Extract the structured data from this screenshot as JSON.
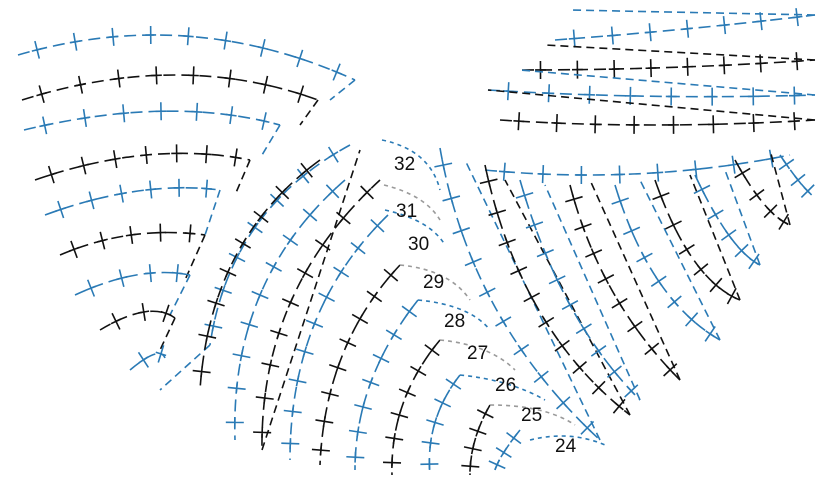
{
  "colors": {
    "black": "#111111",
    "blue": "#2a7ab5",
    "gray": "#9a9a9a",
    "background": "#ffffff"
  },
  "diagram": {
    "row_labels": [
      "32",
      "31",
      "30",
      "29",
      "28",
      "27",
      "26",
      "25",
      "24"
    ],
    "symbol": "cross-stitch",
    "line_style": "dashed"
  }
}
